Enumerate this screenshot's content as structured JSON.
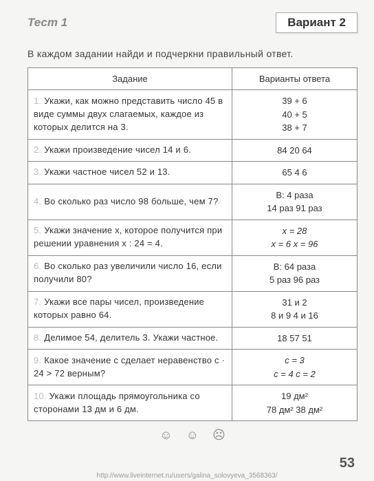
{
  "header": {
    "test": "Тест 1",
    "variant": "Вариант 2"
  },
  "instruction": "В каждом задании найди и подчеркни правильный ответ.",
  "table": {
    "col1": "Задание",
    "col2": "Варианты ответа"
  },
  "rows": [
    {
      "n": "1.",
      "task": "Укажи, как можно представить число 45 в виде суммы двух слагаемых, каждое из которых делится на 3.",
      "ans": "39 + 6\n40 + 5\n38 + 7"
    },
    {
      "n": "2.",
      "task": "Укажи произведение чисел 14 и 6.",
      "ans": "84    20    64"
    },
    {
      "n": "3.",
      "task": "Укажи частное чисел 52 и 13.",
      "ans": "65    4    6"
    },
    {
      "n": "4.",
      "task": "Во сколько раз число 98 больше, чем 7?",
      "ans": "В: 4 раза\n14 раз    91 раз"
    },
    {
      "n": "5.",
      "task": "Укажи значение x, которое получится при решении уравнения x : 24 = 4.",
      "ans": "x = 28\nx = 6   x = 96",
      "italic": true
    },
    {
      "n": "6.",
      "task": "Во сколько раз увеличили число 16, если получили 80?",
      "ans": "В: 64 раза\n5 раз    96 раз"
    },
    {
      "n": "7.",
      "task": "Укажи все пары чисел, произведение которых равно 64.",
      "ans": "31 и 2\n8 и 9    4 и 16"
    },
    {
      "n": "8.",
      "task": "Делимое 54, делитель 3. Укажи частное.",
      "ans": "18    57    51"
    },
    {
      "n": "9.",
      "task": "Какое значение c сделает неравенство c · 24 > 72 верным?",
      "ans": "c = 3\nc = 4    c = 2",
      "italic": true
    },
    {
      "n": "10.",
      "task": "Укажи площадь прямоугольника со сторонами 13 дм и 6 дм.",
      "ans": "19 дм²\n78 дм²  38 дм²"
    }
  ],
  "page": "53",
  "url": "http://www.liveinternet.ru/users/galina_solovyeva_3568363/"
}
